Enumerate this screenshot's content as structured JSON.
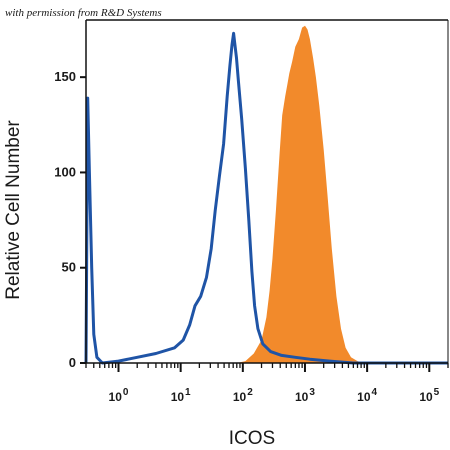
{
  "watermark": "with permission from R&D Systems",
  "chart_data": {
    "type": "area",
    "title": "",
    "xlabel": "ICOS",
    "ylabel": "Relative Cell Number",
    "xscale": "log",
    "xlim": [
      0.3,
      200000
    ],
    "ylim": [
      0,
      180
    ],
    "x_ticks": [
      {
        "base": "10",
        "exp": "0"
      },
      {
        "base": "10",
        "exp": "1"
      },
      {
        "base": "10",
        "exp": "2"
      },
      {
        "base": "10",
        "exp": "3"
      },
      {
        "base": "10",
        "exp": "4"
      },
      {
        "base": "10",
        "exp": "5"
      }
    ],
    "y_ticks": [
      "0",
      "50",
      "100",
      "150"
    ],
    "grid": false,
    "legend": "none",
    "series": [
      {
        "style": "filled",
        "color": "#f28a2b",
        "points": [
          [
            0.3,
            0
          ],
          [
            80,
            0
          ],
          [
            110,
            1
          ],
          [
            150,
            5
          ],
          [
            200,
            12
          ],
          [
            240,
            24
          ],
          [
            270,
            38
          ],
          [
            300,
            55
          ],
          [
            340,
            80
          ],
          [
            390,
            110
          ],
          [
            430,
            130
          ],
          [
            480,
            140
          ],
          [
            520,
            146
          ],
          [
            560,
            152
          ],
          [
            620,
            158
          ],
          [
            700,
            166
          ],
          [
            800,
            170
          ],
          [
            900,
            176
          ],
          [
            1000,
            177
          ],
          [
            1100,
            175
          ],
          [
            1200,
            170
          ],
          [
            1350,
            160
          ],
          [
            1500,
            150
          ],
          [
            1700,
            135
          ],
          [
            2000,
            112
          ],
          [
            2300,
            88
          ],
          [
            2700,
            60
          ],
          [
            3200,
            35
          ],
          [
            3800,
            18
          ],
          [
            4500,
            8
          ],
          [
            5500,
            3
          ],
          [
            7000,
            1
          ],
          [
            9000,
            0
          ],
          [
            200000,
            0
          ]
        ]
      },
      {
        "style": "line",
        "color": "#1f54a6",
        "points": [
          [
            0.3,
            0
          ],
          [
            0.32,
            139
          ],
          [
            0.34,
            100
          ],
          [
            0.37,
            50
          ],
          [
            0.4,
            15
          ],
          [
            0.45,
            3
          ],
          [
            0.55,
            0
          ],
          [
            1,
            1
          ],
          [
            2,
            3
          ],
          [
            4,
            5
          ],
          [
            8,
            8
          ],
          [
            11,
            12
          ],
          [
            14,
            20
          ],
          [
            17,
            30
          ],
          [
            21,
            35
          ],
          [
            26,
            45
          ],
          [
            31,
            60
          ],
          [
            36,
            80
          ],
          [
            42,
            98
          ],
          [
            49,
            115
          ],
          [
            56,
            140
          ],
          [
            62,
            156
          ],
          [
            67,
            167
          ],
          [
            71,
            173
          ],
          [
            74,
            168
          ],
          [
            79,
            160
          ],
          [
            85,
            148
          ],
          [
            96,
            128
          ],
          [
            110,
            102
          ],
          [
            125,
            75
          ],
          [
            140,
            48
          ],
          [
            155,
            30
          ],
          [
            175,
            18
          ],
          [
            210,
            10
          ],
          [
            280,
            6
          ],
          [
            420,
            4
          ],
          [
            700,
            3
          ],
          [
            1200,
            2
          ],
          [
            2500,
            1
          ],
          [
            6000,
            0
          ],
          [
            200000,
            0
          ]
        ]
      }
    ]
  }
}
